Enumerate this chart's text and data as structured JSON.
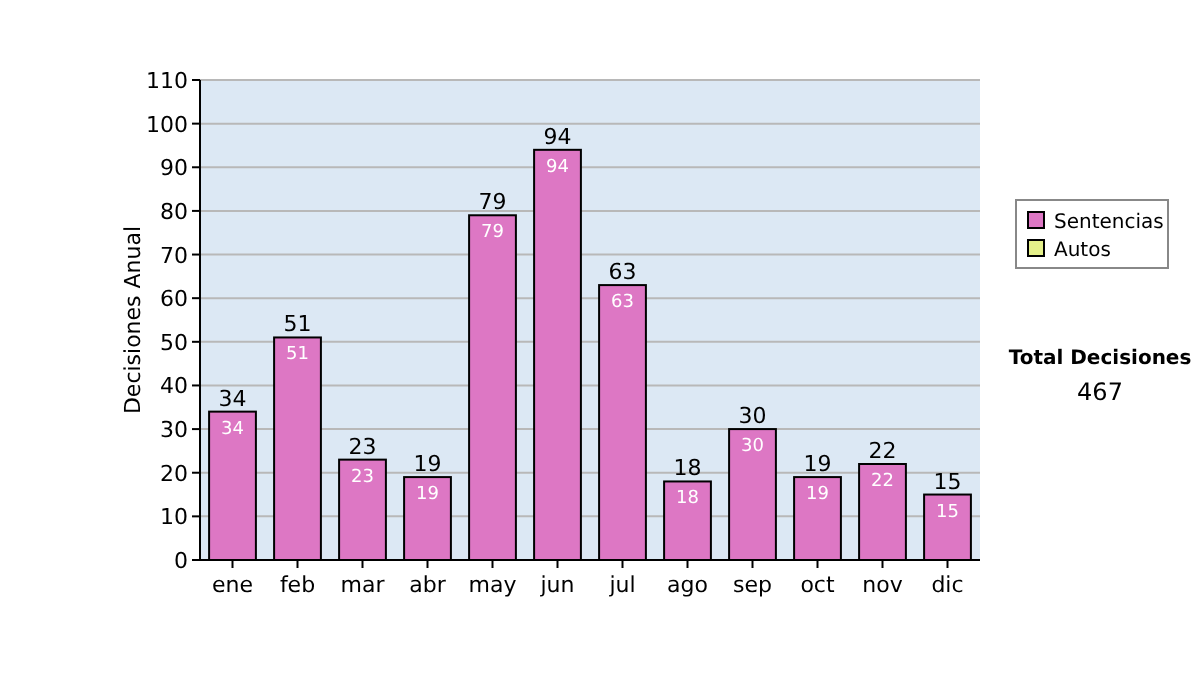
{
  "chart_data": {
    "type": "bar",
    "ylabel": "Decisiones Anual",
    "categories": [
      "ene",
      "feb",
      "mar",
      "abr",
      "may",
      "jun",
      "jul",
      "ago",
      "sep",
      "oct",
      "nov",
      "dic"
    ],
    "series": [
      {
        "name": "Sentencias",
        "color": "#dd77c4",
        "values": [
          34,
          51,
          23,
          19,
          79,
          94,
          63,
          18,
          30,
          19,
          22,
          15
        ],
        "value_labels": [
          "34",
          "51",
          "23",
          "19",
          "79",
          "94",
          "63",
          "18",
          "30",
          "19",
          "22",
          "15"
        ]
      },
      {
        "name": "Autos",
        "color": "#e4f08a",
        "values": [
          0,
          0,
          0,
          0,
          0,
          0,
          0,
          0,
          0,
          0,
          0,
          0
        ]
      }
    ],
    "stacked": true,
    "totals": [
      "34",
      "51",
      "23",
      "19",
      "79",
      "94",
      "63",
      "18",
      "30",
      "19",
      "22",
      "15"
    ],
    "ylim": [
      0,
      110
    ],
    "yticks": [
      0,
      10,
      20,
      30,
      40,
      50,
      60,
      70,
      80,
      90,
      100,
      110
    ],
    "grid": "y",
    "legend": "right",
    "annotations": [
      "Total Decisiones",
      "467"
    ]
  }
}
